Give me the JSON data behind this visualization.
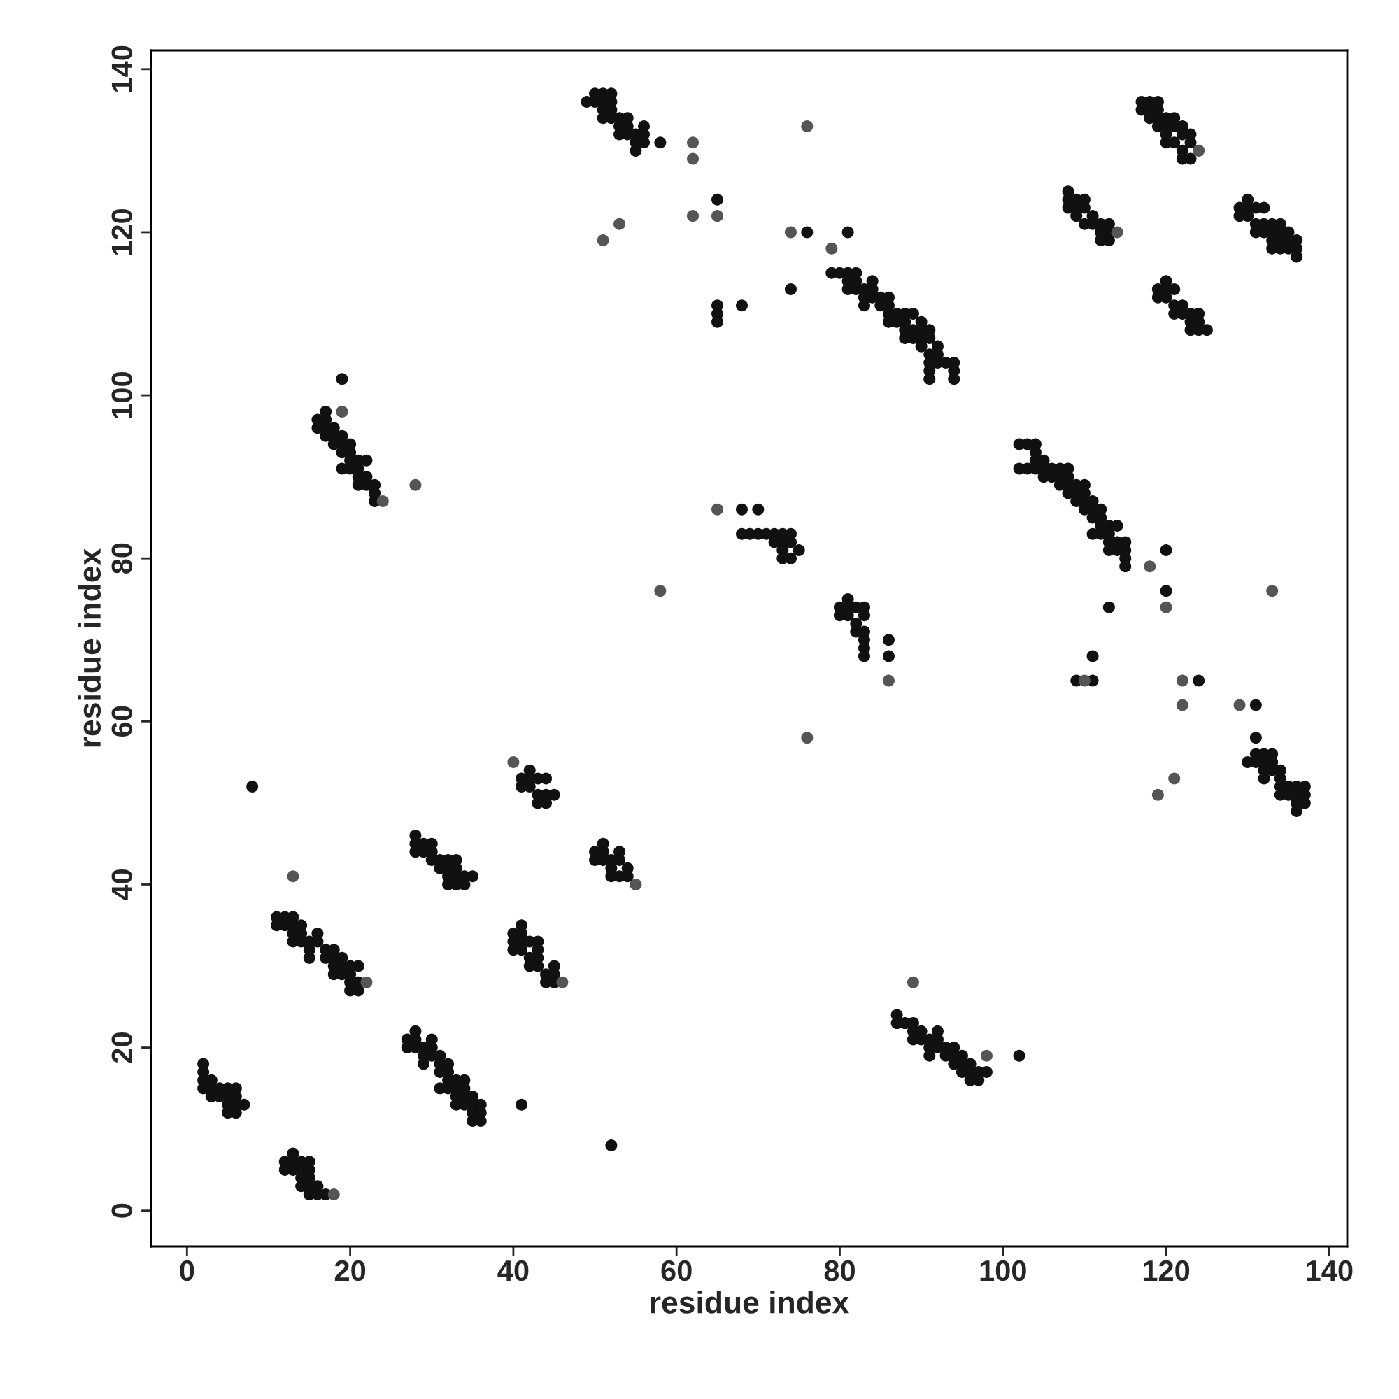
{
  "chart_data": {
    "type": "scatter",
    "xlabel": "residue index",
    "ylabel": "residue index",
    "xlim": [
      -4.4,
      142.2
    ],
    "ylim": [
      -4.4,
      142.3
    ],
    "xticks": [
      0,
      20,
      40,
      60,
      80,
      100,
      120,
      140
    ],
    "yticks": [
      0,
      20,
      40,
      60,
      80,
      100,
      120,
      140
    ],
    "grid": false,
    "legend": false,
    "marker": "circle",
    "series": [
      {
        "color": "#111111",
        "x": [
          2,
          2,
          2,
          2,
          3,
          3,
          3,
          4,
          4,
          5,
          5,
          5,
          5,
          6,
          6,
          6,
          6,
          7,
          12,
          12,
          13,
          13,
          13,
          14,
          14,
          14,
          14,
          15,
          15,
          15,
          15,
          15,
          16,
          16,
          17,
          11,
          11,
          12,
          12,
          13,
          13,
          13,
          13,
          14,
          14,
          14,
          15,
          15,
          15,
          16,
          16,
          17,
          17,
          18,
          18,
          18,
          18,
          19,
          19,
          19,
          20,
          20,
          20,
          20,
          21,
          21,
          21,
          8,
          16,
          16,
          17,
          17,
          17,
          17,
          18,
          18,
          18,
          19,
          19,
          19,
          19,
          20,
          20,
          20,
          20,
          21,
          21,
          21,
          21,
          22,
          22,
          22,
          23,
          23,
          23,
          19,
          27,
          27,
          28,
          28,
          28,
          29,
          29,
          29,
          30,
          30,
          30,
          31,
          31,
          31,
          31,
          32,
          32,
          32,
          32,
          33,
          33,
          33,
          33,
          34,
          34,
          34,
          34,
          35,
          35,
          35,
          35,
          36,
          36,
          36,
          41,
          52,
          28,
          28,
          28,
          29,
          29,
          30,
          30,
          30,
          31,
          31,
          32,
          32,
          32,
          32,
          33,
          33,
          33,
          33,
          34,
          34,
          35,
          40,
          40,
          40,
          41,
          41,
          41,
          41,
          42,
          42,
          42,
          43,
          43,
          43,
          43,
          44,
          44,
          45,
          45,
          45,
          41,
          41,
          42,
          42,
          42,
          43,
          43,
          43,
          44,
          44,
          44,
          45,
          50,
          50,
          51,
          51,
          51,
          52,
          52,
          52,
          53,
          53,
          53,
          54,
          54,
          49,
          50,
          50,
          51,
          51,
          51,
          51,
          52,
          52,
          52,
          52,
          53,
          53,
          53,
          54,
          54,
          54,
          55,
          55,
          55,
          56,
          56,
          56,
          58,
          65,
          65,
          65,
          65,
          68,
          76,
          74,
          81,
          79,
          80,
          81,
          81,
          81,
          82,
          82,
          82,
          83,
          83,
          83,
          84,
          84,
          84,
          85,
          85,
          86,
          86,
          86,
          86,
          87,
          87,
          88,
          88,
          88,
          88,
          89,
          89,
          89,
          90,
          90,
          90,
          90,
          91,
          91,
          91,
          91,
          91,
          91,
          92,
          92,
          92,
          93,
          94,
          94,
          94,
          68,
          70,
          68,
          69,
          70,
          71,
          72,
          72,
          73,
          73,
          73,
          73,
          74,
          74,
          74,
          75,
          80,
          80,
          81,
          81,
          81,
          82,
          82,
          82,
          83,
          83,
          83,
          83,
          83,
          83,
          86,
          86,
          87,
          87,
          88,
          89,
          89,
          89,
          90,
          90,
          91,
          91,
          91,
          92,
          92,
          92,
          93,
          93,
          94,
          94,
          94,
          95,
          95,
          95,
          96,
          96,
          96,
          97,
          97,
          98,
          102,
          102,
          102,
          103,
          103,
          104,
          104,
          104,
          104,
          105,
          105,
          105,
          106,
          106,
          107,
          107,
          107,
          108,
          108,
          108,
          108,
          109,
          109,
          109,
          110,
          110,
          110,
          110,
          111,
          111,
          111,
          111,
          112,
          112,
          112,
          112,
          113,
          113,
          113,
          113,
          114,
          114,
          114,
          115,
          115,
          115,
          115,
          120,
          120,
          113,
          111,
          109,
          111,
          124,
          131,
          108,
          108,
          108,
          109,
          109,
          109,
          110,
          110,
          110,
          111,
          111,
          112,
          112,
          112,
          113,
          113,
          113,
          117,
          117,
          118,
          118,
          118,
          119,
          119,
          119,
          119,
          120,
          120,
          120,
          120,
          121,
          121,
          121,
          122,
          122,
          122,
          122,
          123,
          123,
          123,
          119,
          119,
          120,
          120,
          120,
          121,
          121,
          121,
          122,
          122,
          123,
          123,
          123,
          124,
          124,
          124,
          125,
          129,
          129,
          130,
          130,
          130,
          131,
          131,
          131,
          132,
          132,
          132,
          133,
          133,
          133,
          133,
          134,
          134,
          134,
          134,
          135,
          135,
          135,
          136,
          136,
          136,
          130,
          131,
          131,
          131,
          132,
          132,
          132,
          132,
          133,
          133,
          133,
          134,
          134,
          134,
          134,
          135,
          135,
          136,
          136,
          136,
          136,
          137,
          137,
          137
        ],
        "values": [
          18,
          17,
          16,
          15,
          16,
          15,
          14,
          15,
          14,
          15,
          14,
          13,
          12,
          15,
          14,
          13,
          12,
          13,
          6,
          5,
          7,
          6,
          5,
          6,
          5,
          4,
          3,
          6,
          5,
          4,
          3,
          2,
          3,
          2,
          2,
          36,
          35,
          36,
          35,
          36,
          35,
          34,
          33,
          35,
          34,
          33,
          33,
          32,
          31,
          34,
          33,
          32,
          31,
          32,
          31,
          30,
          29,
          31,
          30,
          29,
          30,
          29,
          28,
          27,
          30,
          28,
          27,
          52,
          97,
          96,
          98,
          97,
          96,
          95,
          96,
          95,
          94,
          95,
          94,
          93,
          91,
          94,
          93,
          92,
          91,
          92,
          91,
          90,
          89,
          92,
          90,
          89,
          89,
          88,
          87,
          102,
          21,
          20,
          22,
          21,
          20,
          20,
          19,
          18,
          21,
          20,
          19,
          19,
          18,
          17,
          15,
          18,
          17,
          16,
          15,
          16,
          15,
          14,
          13,
          16,
          15,
          14,
          13,
          14,
          13,
          12,
          11,
          13,
          12,
          11,
          13,
          8,
          46,
          45,
          44,
          45,
          44,
          45,
          44,
          43,
          43,
          42,
          43,
          42,
          41,
          40,
          43,
          42,
          41,
          40,
          41,
          40,
          41,
          34,
          33,
          32,
          35,
          34,
          33,
          32,
          33,
          31,
          30,
          33,
          32,
          31,
          30,
          29,
          28,
          30,
          29,
          28,
          53,
          52,
          54,
          53,
          52,
          53,
          51,
          50,
          53,
          51,
          50,
          51,
          44,
          43,
          45,
          44,
          43,
          43,
          42,
          41,
          44,
          43,
          41,
          42,
          41,
          136,
          137,
          136,
          137,
          136,
          135,
          134,
          137,
          136,
          135,
          134,
          134,
          133,
          132,
          134,
          133,
          132,
          132,
          131,
          130,
          133,
          132,
          131,
          131,
          124,
          111,
          110,
          109,
          111,
          120,
          113,
          120,
          115,
          115,
          115,
          114,
          113,
          115,
          114,
          113,
          113,
          112,
          111,
          114,
          113,
          112,
          112,
          111,
          112,
          111,
          110,
          109,
          110,
          109,
          110,
          109,
          108,
          107,
          110,
          108,
          107,
          109,
          108,
          107,
          106,
          108,
          107,
          105,
          104,
          103,
          102,
          106,
          105,
          104,
          104,
          104,
          103,
          102,
          86,
          86,
          83,
          83,
          83,
          83,
          83,
          82,
          83,
          82,
          81,
          80,
          83,
          82,
          80,
          81,
          74,
          73,
          75,
          74,
          73,
          74,
          72,
          71,
          74,
          73,
          71,
          70,
          69,
          68,
          70,
          68,
          24,
          23,
          23,
          23,
          22,
          21,
          22,
          21,
          21,
          20,
          19,
          22,
          21,
          20,
          20,
          19,
          20,
          19,
          18,
          19,
          18,
          17,
          18,
          17,
          16,
          17,
          16,
          17,
          19,
          94,
          91,
          94,
          91,
          94,
          93,
          92,
          91,
          92,
          91,
          90,
          91,
          90,
          91,
          90,
          89,
          91,
          90,
          89,
          88,
          89,
          88,
          87,
          89,
          88,
          87,
          86,
          87,
          86,
          85,
          83,
          86,
          85,
          84,
          83,
          84,
          83,
          82,
          81,
          84,
          82,
          81,
          82,
          81,
          80,
          79,
          81,
          76,
          74,
          68,
          65,
          65,
          65,
          62,
          125,
          124,
          123,
          124,
          123,
          122,
          124,
          123,
          121,
          122,
          121,
          121,
          120,
          119,
          121,
          120,
          119,
          136,
          135,
          136,
          135,
          134,
          136,
          135,
          134,
          133,
          134,
          133,
          132,
          131,
          134,
          133,
          131,
          133,
          132,
          130,
          129,
          132,
          131,
          129,
          113,
          112,
          114,
          113,
          112,
          113,
          111,
          110,
          111,
          110,
          110,
          109,
          108,
          110,
          109,
          108,
          108,
          123,
          122,
          124,
          123,
          122,
          123,
          121,
          120,
          123,
          121,
          120,
          121,
          120,
          119,
          118,
          121,
          120,
          119,
          118,
          120,
          119,
          118,
          119,
          118,
          117,
          55,
          58,
          56,
          55,
          56,
          55,
          54,
          53,
          56,
          55,
          54,
          54,
          53,
          52,
          51,
          52,
          51,
          52,
          51,
          50,
          49,
          52,
          51,
          50
        ]
      },
      {
        "color": "#555555",
        "x": [
          19,
          28,
          13,
          51,
          53,
          62,
          62,
          62,
          65,
          74,
          76,
          79,
          58,
          76,
          65,
          86,
          89,
          118,
          120,
          110,
          122,
          122,
          129,
          133,
          119,
          121,
          55,
          40,
          24,
          22,
          18,
          124,
          114,
          98,
          46
        ],
        "values": [
          98,
          89,
          41,
          119,
          121,
          131,
          129,
          122,
          122,
          120,
          133,
          118,
          76,
          58,
          86,
          65,
          28,
          79,
          74,
          65,
          65,
          62,
          62,
          76,
          51,
          53,
          40,
          55,
          87,
          28,
          2,
          130,
          120,
          19,
          28
        ]
      }
    ]
  }
}
